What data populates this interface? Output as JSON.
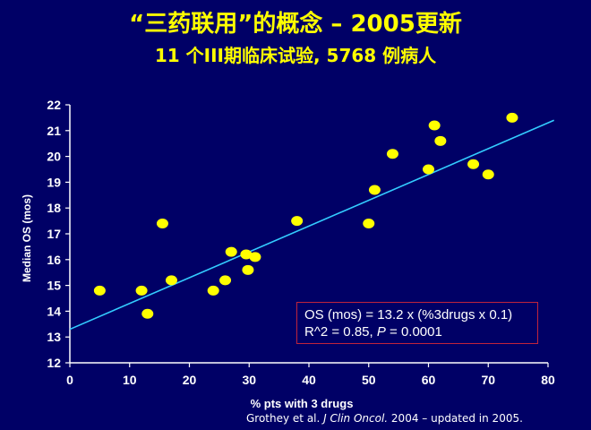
{
  "slide": {
    "title": "“三药联用”的概念 – 2005更新",
    "subtitle": "11 个III期临床试验, 5768 例病人",
    "citation_prefix": "Grothey et al. ",
    "citation_journal": "J Clin Oncol.",
    "citation_suffix": " 2004 – updated in 2005."
  },
  "equation_box": {
    "line1": "OS (mos) = 13.2 x (%3drugs x 0.1)",
    "line2_prefix": "R^2 = 0.85, ",
    "line2_p": "P",
    "line2_suffix": " = 0.0001"
  },
  "colors": {
    "background": "#000066",
    "title": "#ffff00",
    "point": "#ffff00",
    "fit_line": "#33ccff",
    "box_border": "#c0243c"
  },
  "chart_data": {
    "type": "scatter",
    "xlabel": "% pts with 3 drugs",
    "ylabel": "Median OS (mos)",
    "xlim": [
      0,
      80
    ],
    "ylim": [
      12,
      22
    ],
    "xticks": [
      0,
      10,
      20,
      30,
      40,
      50,
      60,
      70,
      80
    ],
    "yticks": [
      12,
      13,
      14,
      15,
      16,
      17,
      18,
      19,
      20,
      21,
      22
    ],
    "grid": false,
    "points": [
      {
        "x": 5,
        "y": 14.8
      },
      {
        "x": 12,
        "y": 14.8
      },
      {
        "x": 13,
        "y": 13.9
      },
      {
        "x": 15.5,
        "y": 17.4
      },
      {
        "x": 17,
        "y": 15.2
      },
      {
        "x": 24,
        "y": 14.8
      },
      {
        "x": 26,
        "y": 15.2
      },
      {
        "x": 27,
        "y": 16.3
      },
      {
        "x": 29.5,
        "y": 16.2
      },
      {
        "x": 29.8,
        "y": 15.6
      },
      {
        "x": 31,
        "y": 16.1
      },
      {
        "x": 38,
        "y": 17.5
      },
      {
        "x": 50,
        "y": 17.4
      },
      {
        "x": 51,
        "y": 18.7
      },
      {
        "x": 54,
        "y": 20.1
      },
      {
        "x": 60,
        "y": 19.5
      },
      {
        "x": 61,
        "y": 21.2
      },
      {
        "x": 62,
        "y": 20.6
      },
      {
        "x": 67.5,
        "y": 19.7
      },
      {
        "x": 70,
        "y": 19.3
      },
      {
        "x": 74,
        "y": 21.5
      }
    ],
    "fit_line": [
      {
        "x": 0,
        "y": 13.3
      },
      {
        "x": 81,
        "y": 21.4
      }
    ]
  }
}
